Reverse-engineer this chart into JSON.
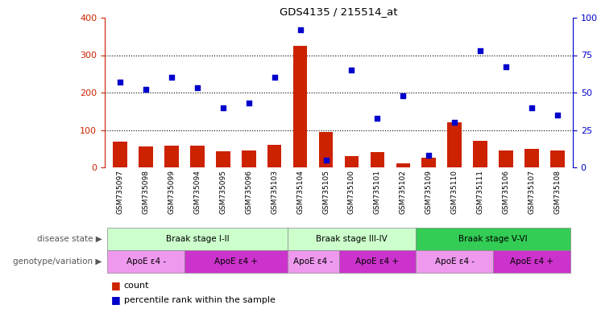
{
  "title": "GDS4135 / 215514_at",
  "samples": [
    "GSM735097",
    "GSM735098",
    "GSM735099",
    "GSM735094",
    "GSM735095",
    "GSM735096",
    "GSM735103",
    "GSM735104",
    "GSM735105",
    "GSM735100",
    "GSM735101",
    "GSM735102",
    "GSM735109",
    "GSM735110",
    "GSM735111",
    "GSM735106",
    "GSM735107",
    "GSM735108"
  ],
  "counts": [
    68,
    55,
    57,
    57,
    42,
    45,
    60,
    325,
    95,
    30,
    40,
    10,
    25,
    120,
    70,
    45,
    50,
    45
  ],
  "percentiles": [
    57,
    52,
    60,
    53,
    40,
    43,
    60,
    92,
    5,
    65,
    33,
    48,
    8,
    30,
    78,
    67,
    40,
    35
  ],
  "ylim_left": [
    0,
    400
  ],
  "ylim_right": [
    0,
    100
  ],
  "yticks_left": [
    0,
    100,
    200,
    300,
    400
  ],
  "yticks_right": [
    0,
    25,
    50,
    75,
    100
  ],
  "bar_color": "#cc2200",
  "dot_color": "#0000cc",
  "disease_state_groups": [
    {
      "label": "Braak stage I-II",
      "start": 0,
      "end": 7,
      "color": "#ccffcc"
    },
    {
      "label": "Braak stage III-IV",
      "start": 7,
      "end": 12,
      "color": "#ccffcc"
    },
    {
      "label": "Braak stage V-VI",
      "start": 12,
      "end": 18,
      "color": "#33cc55"
    }
  ],
  "genotype_groups": [
    {
      "label": "ApoE ε4 -",
      "start": 0,
      "end": 3,
      "color": "#ee99ee"
    },
    {
      "label": "ApoE ε4 +",
      "start": 3,
      "end": 7,
      "color": "#cc33cc"
    },
    {
      "label": "ApoE ε4 -",
      "start": 7,
      "end": 9,
      "color": "#ee99ee"
    },
    {
      "label": "ApoE ε4 +",
      "start": 9,
      "end": 12,
      "color": "#cc33cc"
    },
    {
      "label": "ApoE ε4 -",
      "start": 12,
      "end": 15,
      "color": "#ee99ee"
    },
    {
      "label": "ApoE ε4 +",
      "start": 15,
      "end": 18,
      "color": "#cc33cc"
    }
  ],
  "left_label_color": "#cc2200",
  "right_label_color": "#0000cc",
  "bg_color": "#ffffff",
  "grid_color": "#000000",
  "ds_label": "disease state",
  "gt_label": "genotype/variation",
  "legend_count": "count",
  "legend_pct": "percentile rank within the sample"
}
